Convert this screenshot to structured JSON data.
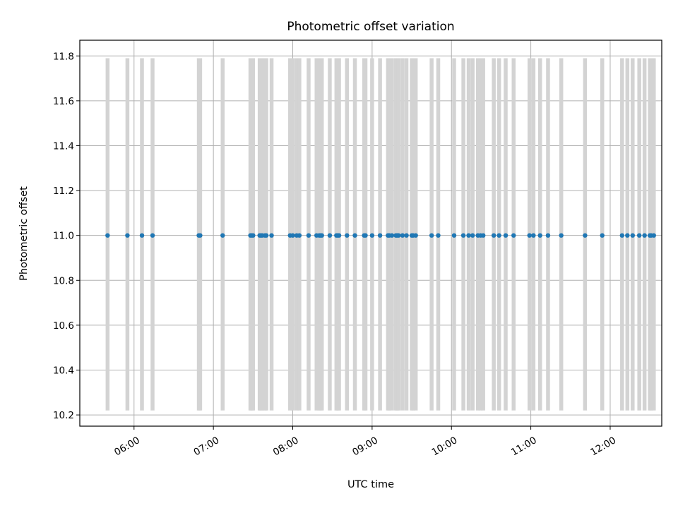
{
  "chart_data": {
    "type": "scatter",
    "title": "Photometric offset variation",
    "xlabel": "UTC time",
    "ylabel": "Photometric offset",
    "x_axis": {
      "unit": "time of day (UTC)",
      "range": [
        "05:19",
        "12:39"
      ],
      "ticks": [
        "06:00",
        "07:00",
        "08:00",
        "09:00",
        "10:00",
        "11:00",
        "12:00"
      ]
    },
    "y_axis": {
      "range": [
        10.15,
        11.87
      ],
      "ticks": [
        "10.2",
        "10.4",
        "10.6",
        "10.8",
        "11.0",
        "11.2",
        "11.4",
        "11.6",
        "11.8"
      ]
    },
    "grid": true,
    "series": [
      {
        "color": "#1f77b4",
        "marker": "point",
        "y": 11.0,
        "x": [
          "05:40",
          "05:55",
          "06:06",
          "06:14",
          "06:49",
          "06:50",
          "07:07",
          "07:28",
          "07:29",
          "07:30",
          "07:35",
          "07:36",
          "07:37",
          "07:39",
          "07:40",
          "07:44",
          "07:58",
          "08:00",
          "08:03",
          "08:05",
          "08:12",
          "08:18",
          "08:20",
          "08:21",
          "08:22",
          "08:28",
          "08:33",
          "08:34",
          "08:35",
          "08:41",
          "08:47",
          "08:54",
          "08:55",
          "09:00",
          "09:06",
          "09:12",
          "09:13",
          "09:15",
          "09:18",
          "09:19",
          "09:20",
          "09:23",
          "09:26",
          "09:30",
          "09:31",
          "09:33",
          "09:45",
          "09:50",
          "10:02",
          "10:09",
          "10:13",
          "10:16",
          "10:20",
          "10:22",
          "10:24",
          "10:32",
          "10:36",
          "10:41",
          "10:47",
          "10:59",
          "11:02",
          "11:07",
          "11:13",
          "11:23",
          "11:41",
          "11:54",
          "12:09",
          "12:13",
          "12:17",
          "12:22",
          "12:26",
          "12:30",
          "12:31",
          "12:33"
        ]
      }
    ],
    "error_bars": {
      "color": "#d3d3d3",
      "low": 10.22,
      "high": 11.79
    }
  }
}
